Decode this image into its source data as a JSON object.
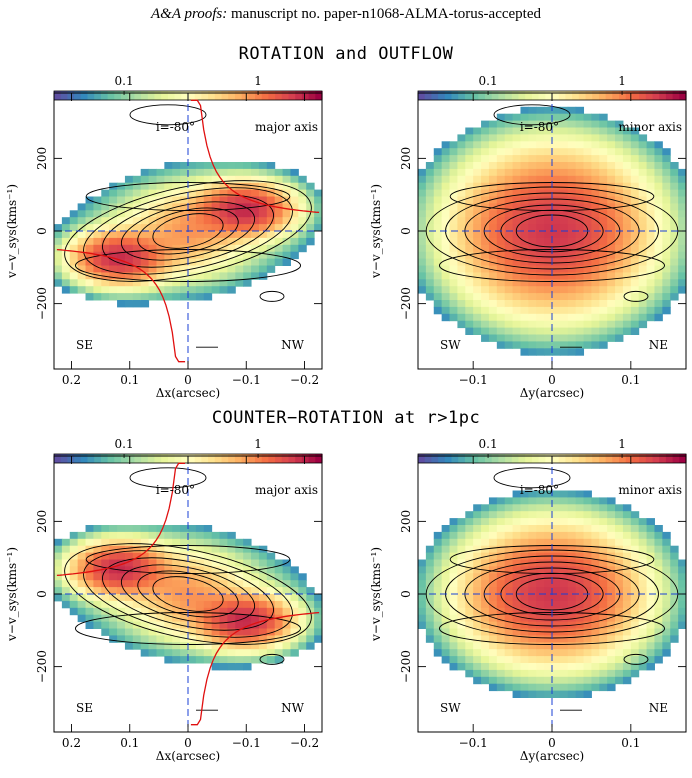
{
  "header": {
    "journal": "A&A proofs:",
    "manuscript": "manuscript no. paper-n1068-ALMA-torus-accepted"
  },
  "sections": [
    {
      "title": "ROTATION and OUTFLOW"
    },
    {
      "title": "COUNTER−ROTATION at r>1pc"
    }
  ],
  "colors": {
    "dashed": "#1a3fd6",
    "curve": "#e01010",
    "contour": "#000000"
  },
  "colorbar": {
    "tick_labels": [
      "0.1",
      "1"
    ],
    "scale": "log",
    "palette": "spectral"
  },
  "panels": [
    {
      "inclination": "i=-80°",
      "axis_label": "major axis",
      "left_label": "SE",
      "right_label": "NW",
      "xlabel": "Δx(arcsec)",
      "xticks": [
        "0.2",
        "0.1",
        "0",
        "−0.1",
        "−0.2"
      ],
      "ylabel": "v−v_sys(kms⁻¹)",
      "yticks": [
        "200",
        "0",
        "−200"
      ]
    },
    {
      "inclination": "i=-80°",
      "axis_label": "minor axis",
      "left_label": "SW",
      "right_label": "NE",
      "xlabel": "Δy(arcsec)",
      "xticks": [
        "−0.1",
        "0",
        "0.1"
      ],
      "ylabel": "v−v_sys(kms⁻¹)",
      "yticks": [
        "200",
        "0",
        "−200"
      ]
    },
    {
      "inclination": "i=-80°",
      "axis_label": "major axis",
      "left_label": "SE",
      "right_label": "NW",
      "xlabel": "Δx(arcsec)",
      "xticks": [
        "0.2",
        "0.1",
        "0",
        "−0.1",
        "−0.2"
      ],
      "ylabel": "v−v_sys(kms⁻¹)",
      "yticks": [
        "200",
        "0",
        "−200"
      ]
    },
    {
      "inclination": "i=-80°",
      "axis_label": "minor axis",
      "left_label": "SW",
      "right_label": "NE",
      "xlabel": "Δy(arcsec)",
      "xticks": [
        "−0.1",
        "0",
        "0.1"
      ],
      "ylabel": "v−v_sys(kms⁻¹)",
      "yticks": [
        "200",
        "0",
        "−200"
      ]
    }
  ],
  "chart_data": [
    {
      "type": "heatmap",
      "panel": "major-axis-rotation-outflow",
      "xlim": [
        0.23,
        -0.23
      ],
      "ylim": [
        -380,
        380
      ],
      "xticks": [
        0.2,
        0.1,
        0,
        -0.1,
        -0.2
      ],
      "yticks": [
        200,
        0,
        -200
      ],
      "color_range": [
        0.03,
        3
      ],
      "color_ticks": [
        0.1,
        1
      ],
      "peaks": [
        {
          "x": 0.12,
          "v": -75
        },
        {
          "x": -0.1,
          "v": 60
        }
      ]
    },
    {
      "type": "heatmap",
      "panel": "minor-axis-rotation-outflow",
      "xlim": [
        -0.17,
        0.17
      ],
      "ylim": [
        -380,
        380
      ],
      "xticks": [
        -0.1,
        0,
        0.1
      ],
      "yticks": [
        200,
        0,
        -200
      ],
      "color_range": [
        0.03,
        3
      ],
      "color_ticks": [
        0.1,
        1
      ],
      "peaks": [
        {
          "x": 0.0,
          "v": 0
        }
      ]
    },
    {
      "type": "heatmap",
      "panel": "major-axis-counter-rotation",
      "xlim": [
        0.23,
        -0.23
      ],
      "ylim": [
        -380,
        380
      ],
      "xticks": [
        0.2,
        0.1,
        0,
        -0.1,
        -0.2
      ],
      "yticks": [
        200,
        0,
        -200
      ],
      "color_range": [
        0.03,
        3
      ],
      "color_ticks": [
        0.1,
        1
      ],
      "peaks": [
        {
          "x": 0.12,
          "v": 70
        },
        {
          "x": -0.1,
          "v": -75
        }
      ]
    },
    {
      "type": "heatmap",
      "panel": "minor-axis-counter-rotation",
      "xlim": [
        -0.17,
        0.17
      ],
      "ylim": [
        -380,
        380
      ],
      "xticks": [
        -0.1,
        0,
        0.1
      ],
      "yticks": [
        200,
        0,
        -200
      ],
      "color_range": [
        0.03,
        3
      ],
      "color_ticks": [
        0.1,
        1
      ],
      "peaks": [
        {
          "x": 0.0,
          "v": 0
        }
      ]
    }
  ]
}
